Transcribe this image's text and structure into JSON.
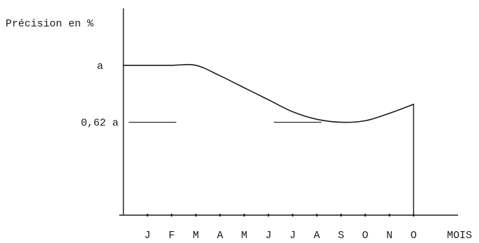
{
  "chart_data": {
    "type": "line",
    "title": "",
    "ylabel": "Précision en %",
    "xlabel": "MOIS",
    "categories": [
      "J",
      "F",
      "M",
      "A",
      "M",
      "J",
      "J",
      "A",
      "S",
      "O",
      "N",
      "O"
    ],
    "y_tick_labels": [
      "a",
      "0,62 a"
    ],
    "reference_lines": [
      {
        "label": "0,62 a",
        "value": 0.62,
        "segments": [
          [
            1,
            3
          ],
          [
            7,
            9
          ]
        ]
      }
    ],
    "series": [
      {
        "x": [
          1,
          2,
          3,
          4,
          5,
          6,
          7,
          8,
          9,
          10,
          11,
          12
        ],
        "values": [
          1.0,
          1.0,
          1.0,
          0.93,
          0.85,
          0.77,
          0.69,
          0.64,
          0.62,
          0.63,
          0.68,
          0.74
        ]
      }
    ],
    "ylim": [
      0,
      1.38
    ],
    "grid": false,
    "legend": "none"
  }
}
